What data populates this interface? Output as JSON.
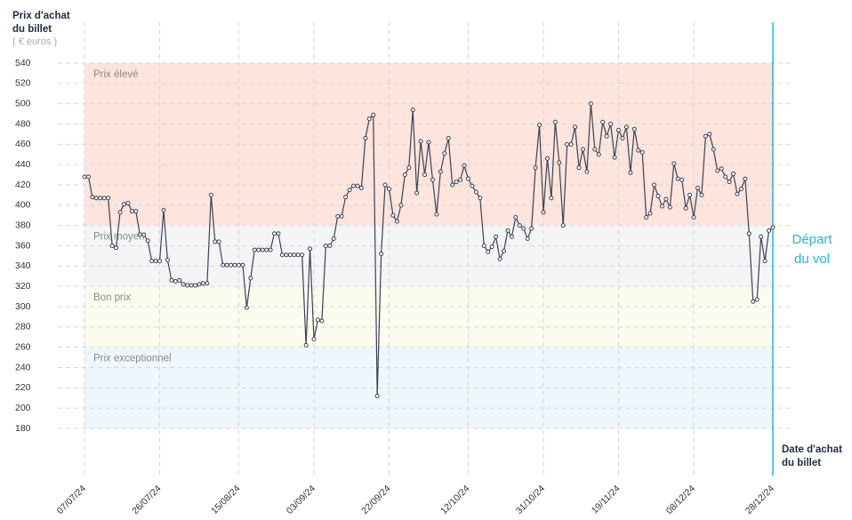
{
  "chart_data": {
    "type": "line",
    "y_title": [
      "Prix d'achat",
      "du billet"
    ],
    "y_subtitle": "( € euros )",
    "x_title": [
      "Date d'achat",
      "du billet"
    ],
    "annotation": [
      "Départ",
      "du vol"
    ],
    "annotation_color": "#29b6d6",
    "ylim": [
      180,
      540
    ],
    "yticks": [
      180,
      200,
      220,
      240,
      260,
      280,
      300,
      320,
      340,
      360,
      380,
      400,
      420,
      440,
      460,
      480,
      500,
      520,
      540
    ],
    "grid": true,
    "bands": [
      {
        "label": "Prix élevé",
        "from": 380,
        "to": 540,
        "color": "#fde4dc"
      },
      {
        "label": "Prix moyen",
        "from": 320,
        "to": 380,
        "color": "#f5f5f7"
      },
      {
        "label": "Bon prix",
        "from": 260,
        "to": 320,
        "color": "#fbfbee"
      },
      {
        "label": "Prix exceptionnel",
        "from": 180,
        "to": 260,
        "color": "#eef7fb"
      }
    ],
    "categories": [
      "07/07/24",
      null,
      null,
      null,
      null,
      null,
      null,
      null,
      null,
      null,
      null,
      null,
      null,
      null,
      null,
      null,
      null,
      null,
      null,
      "26/07/24",
      null,
      null,
      null,
      null,
      null,
      null,
      null,
      null,
      null,
      null,
      null,
      null,
      null,
      null,
      null,
      null,
      null,
      null,
      null,
      "15/08/24",
      null,
      null,
      null,
      null,
      null,
      null,
      null,
      null,
      null,
      null,
      null,
      null,
      null,
      null,
      null,
      null,
      null,
      null,
      "03/09/24",
      null,
      null,
      null,
      null,
      null,
      null,
      null,
      null,
      null,
      null,
      null,
      null,
      null,
      null,
      null,
      null,
      null,
      null,
      "22/09/24",
      null,
      null,
      null,
      null,
      null,
      null,
      null,
      null,
      null,
      null,
      null,
      null,
      null,
      null,
      null,
      null,
      null,
      null,
      null,
      "12/10/24",
      null,
      null,
      null,
      null,
      null,
      null,
      null,
      null,
      null,
      null,
      null,
      null,
      null,
      null,
      null,
      null,
      null,
      null,
      "31/10/24",
      null,
      null,
      null,
      null,
      null,
      null,
      null,
      null,
      null,
      null,
      null,
      null,
      null,
      null,
      null,
      null,
      null,
      null,
      "19/11/24",
      null,
      null,
      null,
      null,
      null,
      null,
      null,
      null,
      null,
      null,
      null,
      null,
      null,
      null,
      null,
      null,
      null,
      null,
      "08/12/24",
      null,
      null,
      null,
      null,
      null,
      null,
      null,
      null,
      null,
      null,
      null,
      null,
      null,
      null,
      null,
      null,
      null,
      null,
      null,
      "28/12/24"
    ],
    "series": [
      {
        "color": "#3a4256",
        "values": [
          428,
          428,
          408,
          407,
          407,
          407,
          407,
          360,
          358,
          393,
          401,
          402,
          394,
          394,
          371,
          371,
          365,
          345,
          345,
          345,
          395,
          346,
          326,
          325,
          326,
          322,
          321,
          321,
          321,
          322,
          323,
          323,
          410,
          364,
          364,
          341,
          341,
          341,
          341,
          341,
          341,
          299,
          328,
          356,
          356,
          356,
          356,
          356,
          372,
          372,
          351,
          351,
          351,
          351,
          351,
          351,
          262,
          357,
          268,
          287,
          286,
          360,
          360,
          367,
          389,
          389,
          408,
          415,
          419,
          419,
          417,
          466,
          485,
          489,
          212,
          352,
          420,
          416,
          390,
          384,
          400,
          430,
          437,
          494,
          412,
          463,
          430,
          462,
          425,
          391,
          433,
          451,
          466,
          420,
          423,
          425,
          439,
          426,
          419,
          413,
          407,
          360,
          354,
          359,
          369,
          347,
          355,
          375,
          369,
          388,
          380,
          377,
          367,
          377,
          437,
          479,
          393,
          446,
          407,
          482,
          442,
          380,
          460,
          460,
          477,
          437,
          455,
          433,
          500,
          455,
          450,
          482,
          468,
          480,
          447,
          474,
          466,
          477,
          432,
          475,
          454,
          452,
          388,
          392,
          420,
          409,
          399,
          406,
          398,
          441,
          426,
          425,
          397,
          410,
          388,
          417,
          410,
          468,
          470,
          455,
          434,
          436,
          428,
          423,
          431,
          411,
          416,
          426,
          372,
          305,
          307,
          369,
          345,
          375,
          378
        ]
      }
    ]
  }
}
